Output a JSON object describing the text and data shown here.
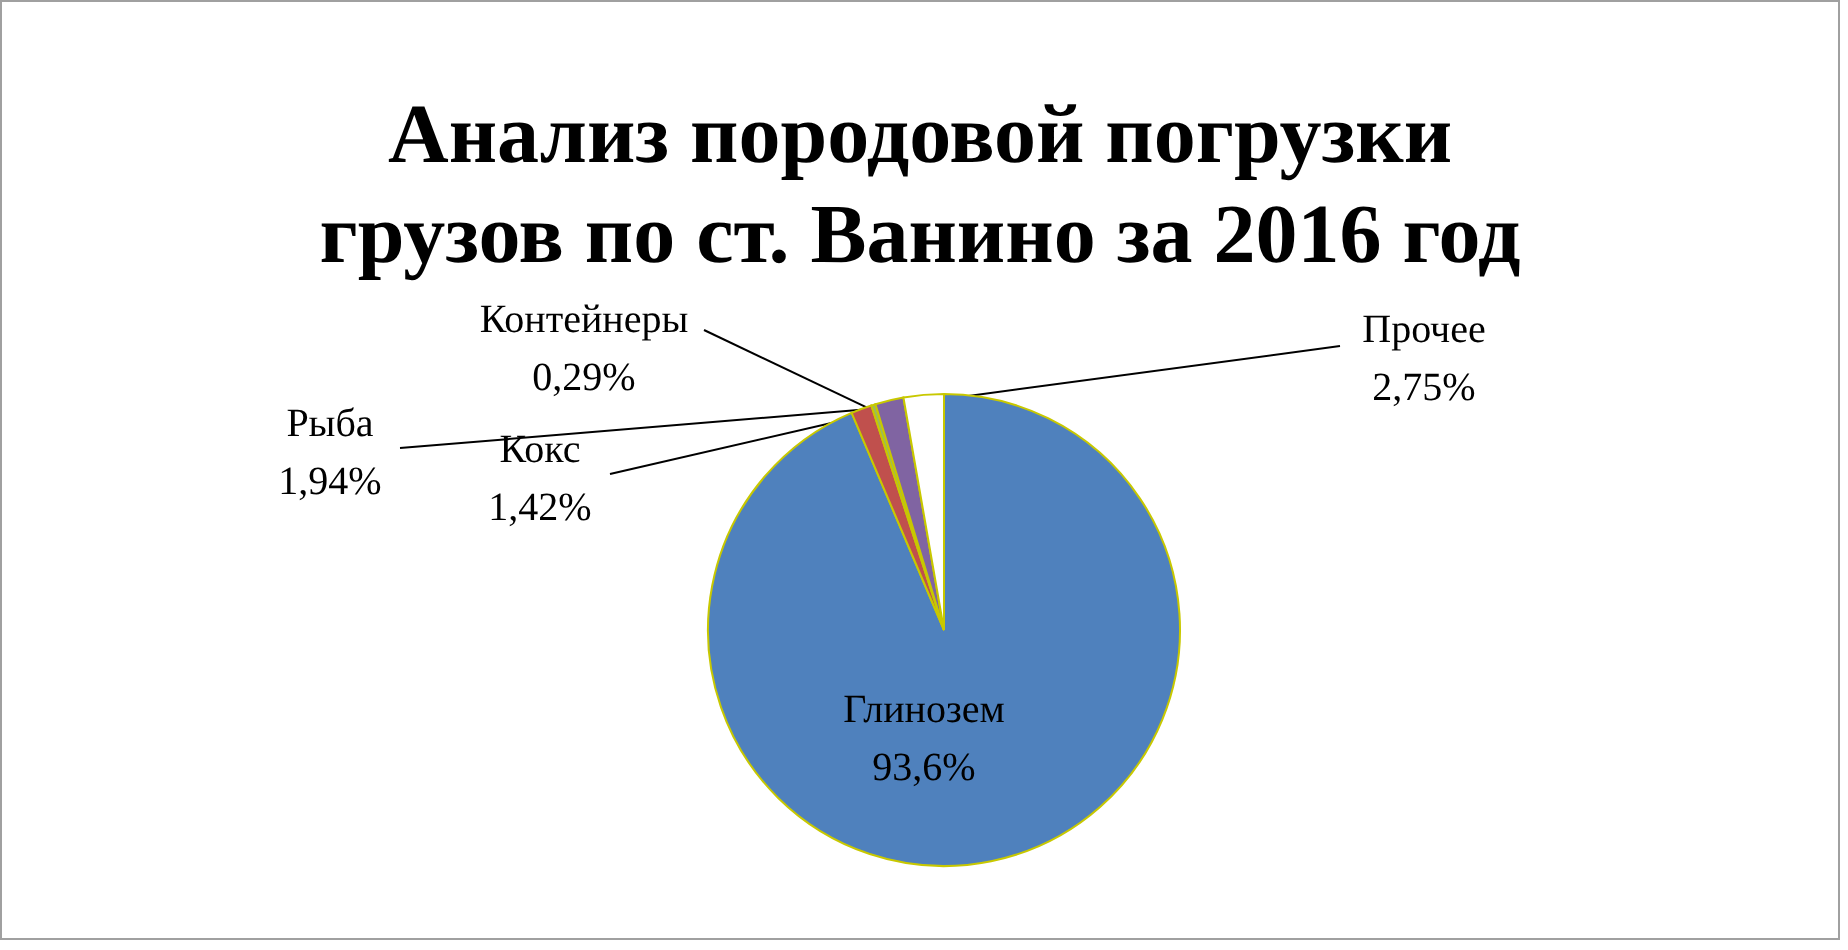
{
  "chart_data": {
    "type": "pie",
    "title": [
      "Анализ  породовой погрузки",
      "грузов по ст. Ванино за 2016 год"
    ],
    "categories": [
      "Глинозем",
      "Кокс",
      "Контейнеры",
      "Рыба",
      "Прочее"
    ],
    "values": [
      93.6,
      1.42,
      0.29,
      1.94,
      2.75
    ],
    "value_labels": [
      "93,6%",
      "1,42%",
      "0,29%",
      "1,94%",
      "2,75%"
    ],
    "colors": [
      "#4f81bd",
      "#c0504d",
      "#9bbb59",
      "#8064a2",
      "#ffffff"
    ]
  }
}
